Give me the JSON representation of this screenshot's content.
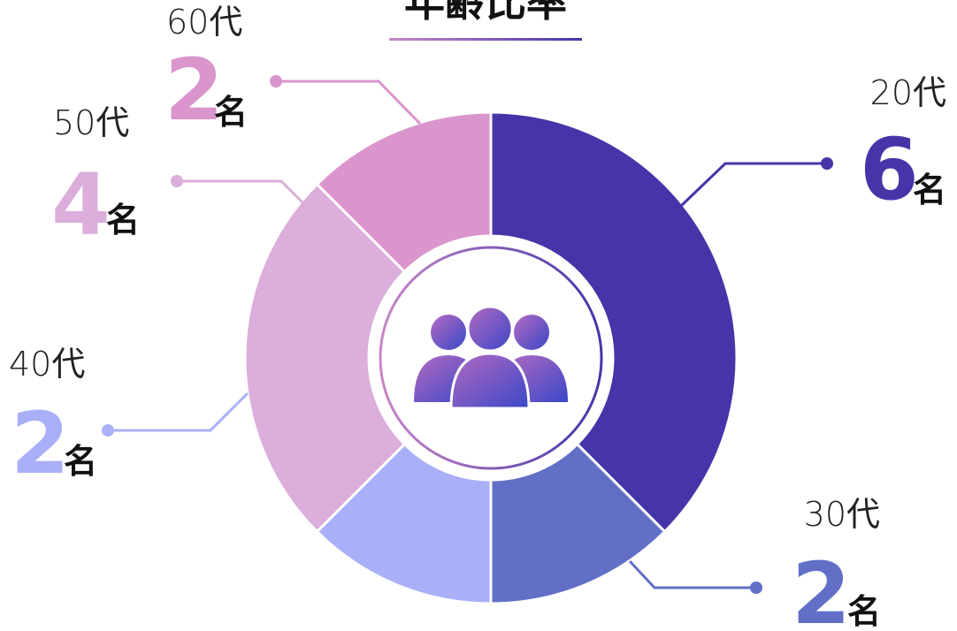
{
  "chart_data": {
    "type": "donut",
    "title": "年齢比率",
    "unit": "名",
    "categories": [
      "20代",
      "30代",
      "40代",
      "50代",
      "60代"
    ],
    "values": [
      6,
      2,
      2,
      4,
      2
    ],
    "colors": [
      "#4535a8",
      "#616fc6",
      "#a9b0f8",
      "#dbaedb",
      "#da95cc"
    ]
  }
}
